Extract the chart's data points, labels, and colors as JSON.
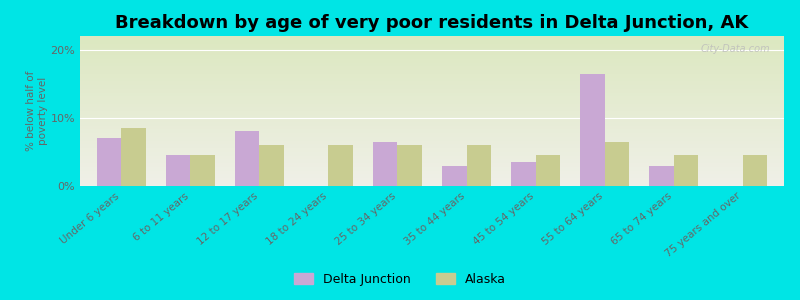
{
  "title": "Breakdown by age of very poor residents in Delta Junction, AK",
  "categories": [
    "Under 6 years",
    "6 to 11 years",
    "12 to 17 years",
    "18 to 24 years",
    "25 to 34 years",
    "35 to 44 years",
    "45 to 54 years",
    "55 to 64 years",
    "65 to 74 years",
    "75 years and over"
  ],
  "delta_junction": [
    7.0,
    4.5,
    8.0,
    0.0,
    6.5,
    3.0,
    3.5,
    16.5,
    3.0,
    0.0
  ],
  "alaska": [
    8.5,
    4.5,
    6.0,
    6.0,
    6.0,
    6.0,
    4.5,
    6.5,
    4.5,
    4.5
  ],
  "delta_junction_color": "#c9a8d4",
  "alaska_color": "#c8cc90",
  "background_outer": "#00e5e5",
  "background_plot_top": "#dce8c0",
  "background_plot_bottom": "#f0f0e8",
  "ylabel": "% below half of\npoverty level",
  "ylim": [
    0,
    22
  ],
  "yticks": [
    0,
    10,
    20
  ],
  "ytick_labels": [
    "0%",
    "10%",
    "20%"
  ],
  "bar_width": 0.35,
  "title_fontsize": 13,
  "legend_labels": [
    "Delta Junction",
    "Alaska"
  ],
  "watermark": "City-Data.com"
}
